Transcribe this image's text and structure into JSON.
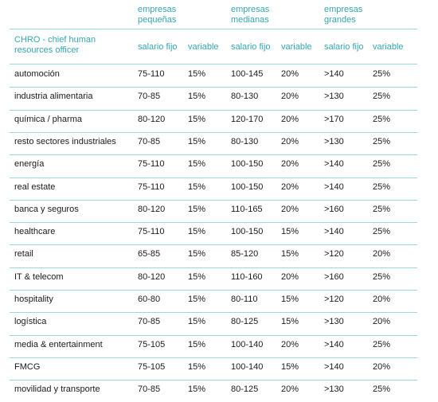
{
  "header": {
    "groups": [
      "empresas\npequeñas",
      "empresas\nmedianas",
      "empresas\ngrandes"
    ],
    "role_label": "CHRO - chief human\nresources officer",
    "subcols": [
      "salario fijo",
      "variable",
      "salario fijo",
      "variable",
      "salario fijo",
      "variable"
    ]
  },
  "rows": [
    [
      "automoción",
      "75-110",
      "15%",
      "100-145",
      "20%",
      ">140",
      "25%"
    ],
    [
      "industria alimentaria",
      "70-85",
      "15%",
      "80-130",
      "20%",
      ">130",
      "25%"
    ],
    [
      "química / pharma",
      "80-120",
      "15%",
      "120-170",
      "20%",
      ">170",
      "25%"
    ],
    [
      "resto sectores industriales",
      "70-85",
      "15%",
      "80-130",
      "20%",
      ">130",
      "25%"
    ],
    [
      "energía",
      "75-110",
      "15%",
      "100-150",
      "20%",
      ">140",
      "25%"
    ],
    [
      "real estate",
      "75-110",
      "15%",
      "100-150",
      "20%",
      ">140",
      "25%"
    ],
    [
      "banca y seguros",
      "80-120",
      "15%",
      "110-165",
      "20%",
      ">160",
      "25%"
    ],
    [
      "healthcare",
      "75-110",
      "15%",
      "100-150",
      "15%",
      ">140",
      "25%"
    ],
    [
      "retail",
      "65-85",
      "15%",
      "85-120",
      "15%",
      ">120",
      "20%"
    ],
    [
      "IT & telecom",
      "80-120",
      "15%",
      "110-160",
      "20%",
      ">160",
      "25%"
    ],
    [
      "hospitality",
      "60-80",
      "15%",
      "80-110",
      "15%",
      ">120",
      "20%"
    ],
    [
      "logística",
      "70-85",
      "15%",
      "80-125",
      "15%",
      ">130",
      "20%"
    ],
    [
      "media & entertainment",
      "75-105",
      "15%",
      "100-140",
      "20%",
      ">140",
      "25%"
    ],
    [
      "FMCG",
      "75-105",
      "15%",
      "100-140",
      "15%",
      ">140",
      "20%"
    ],
    [
      "movilidad y transporte",
      "70-85",
      "15%",
      "80-125",
      "20%",
      ">130",
      "25%"
    ]
  ]
}
